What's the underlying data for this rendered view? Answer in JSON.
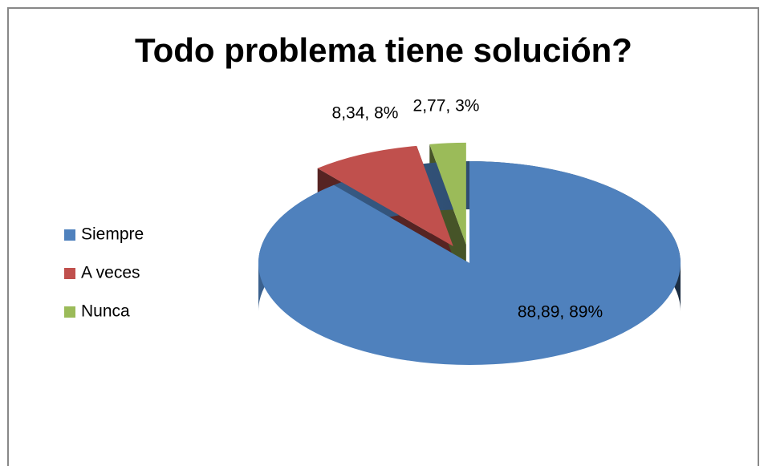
{
  "chart_data": {
    "type": "pie",
    "title": "Todo problema tiene solución?",
    "categories": [
      "Siempre",
      "A veces",
      "Nunca"
    ],
    "values": [
      88.89,
      8.34,
      2.77
    ],
    "value_labels": [
      "88,89, 89%",
      "8,34, 8%",
      "2,77, 3%"
    ],
    "colors": [
      "#4f81bd",
      "#c0504d",
      "#9bbb59"
    ],
    "legend": "left"
  }
}
